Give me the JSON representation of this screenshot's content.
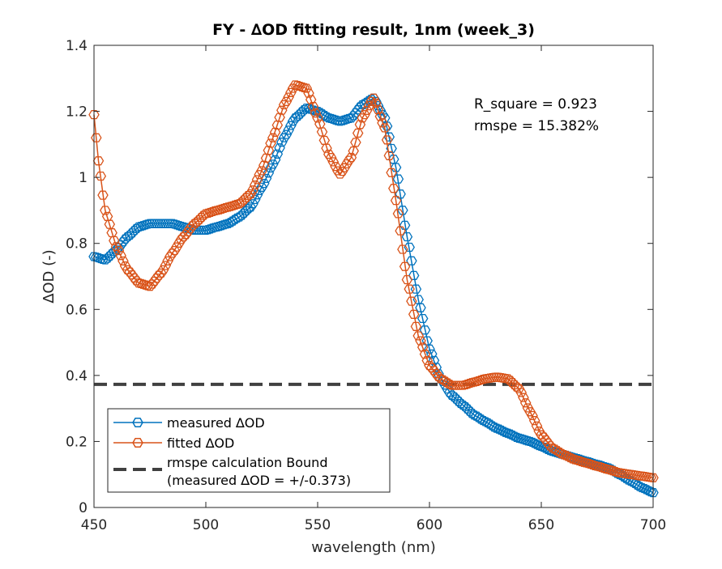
{
  "chart_data": {
    "type": "line",
    "title": "FY - ∆OD fitting result, 1nm (week_3)",
    "xlabel": "wavelength (nm)",
    "ylabel": "∆OD (-)",
    "xlim": [
      450,
      700
    ],
    "ylim": [
      0,
      1.4
    ],
    "xticks": [
      "450",
      "500",
      "550",
      "600",
      "650",
      "700"
    ],
    "yticks": [
      "0",
      "0.2",
      "0.4",
      "0.6",
      "0.8",
      "1",
      "1.2",
      "1.4"
    ],
    "grid": false,
    "legend_position": "bottom-left",
    "annotations": [
      "R_square = 0.923",
      "rmspe = 15.382%"
    ],
    "series": [
      {
        "name": "measured ∆OD",
        "color": "#0072BD",
        "marker": "hexagon",
        "x": [
          450,
          455,
          460,
          465,
          470,
          475,
          480,
          485,
          490,
          495,
          500,
          505,
          510,
          515,
          520,
          525,
          530,
          535,
          540,
          545,
          550,
          555,
          560,
          565,
          570,
          575,
          580,
          585,
          590,
          595,
          600,
          605,
          610,
          615,
          620,
          625,
          630,
          635,
          640,
          645,
          650,
          655,
          660,
          665,
          670,
          675,
          680,
          685,
          690,
          695,
          700
        ],
        "y": [
          0.76,
          0.75,
          0.78,
          0.82,
          0.85,
          0.86,
          0.86,
          0.86,
          0.85,
          0.84,
          0.84,
          0.85,
          0.86,
          0.88,
          0.91,
          0.97,
          1.04,
          1.12,
          1.18,
          1.21,
          1.2,
          1.18,
          1.17,
          1.18,
          1.22,
          1.24,
          1.18,
          1.03,
          0.82,
          0.63,
          0.48,
          0.39,
          0.34,
          0.31,
          0.28,
          0.26,
          0.24,
          0.225,
          0.21,
          0.2,
          0.185,
          0.17,
          0.16,
          0.15,
          0.14,
          0.13,
          0.12,
          0.1,
          0.08,
          0.06,
          0.045
        ]
      },
      {
        "name": "fitted ∆OD",
        "color": "#D95319",
        "marker": "hexagon",
        "x": [
          450,
          452,
          455,
          460,
          465,
          470,
          475,
          480,
          485,
          490,
          495,
          500,
          505,
          510,
          515,
          520,
          525,
          530,
          535,
          540,
          545,
          550,
          555,
          560,
          565,
          570,
          575,
          580,
          585,
          590,
          595,
          600,
          605,
          610,
          615,
          620,
          625,
          630,
          635,
          640,
          645,
          650,
          655,
          660,
          665,
          670,
          675,
          680,
          685,
          690,
          695,
          700
        ],
        "y": [
          1.19,
          1.05,
          0.9,
          0.79,
          0.72,
          0.68,
          0.67,
          0.71,
          0.77,
          0.82,
          0.86,
          0.89,
          0.9,
          0.91,
          0.92,
          0.95,
          1.02,
          1.12,
          1.22,
          1.28,
          1.27,
          1.18,
          1.07,
          1.01,
          1.06,
          1.18,
          1.24,
          1.15,
          0.93,
          0.69,
          0.52,
          0.43,
          0.39,
          0.37,
          0.37,
          0.38,
          0.39,
          0.395,
          0.39,
          0.36,
          0.29,
          0.22,
          0.18,
          0.16,
          0.145,
          0.135,
          0.125,
          0.115,
          0.105,
          0.1,
          0.095,
          0.09
        ]
      }
    ],
    "bound": {
      "name": "rmspe calculation Bound",
      "name_line2": "(measured ∆OD = +/-0.373)",
      "y": 0.373,
      "color": "#404040",
      "style": "dashed"
    }
  }
}
